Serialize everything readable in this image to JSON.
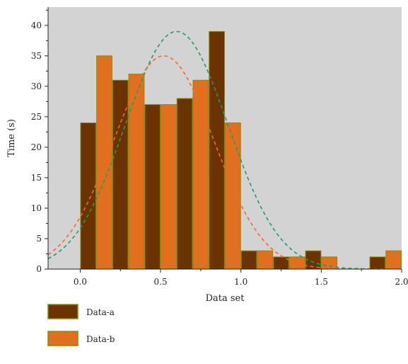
{
  "chart_data": {
    "type": "bar",
    "xlabel": "Data set",
    "ylabel": "Time (s)",
    "xlim": [
      -0.2,
      2.0
    ],
    "ylim": [
      0,
      43
    ],
    "x_ticks": [
      0.0,
      0.5,
      1.0,
      1.5,
      2.0
    ],
    "x_tick_labels": [
      "0.0",
      "0.5",
      "1.0",
      "1.5",
      "2.0"
    ],
    "y_ticks": [
      0,
      5,
      10,
      15,
      20,
      25,
      30,
      35,
      40
    ],
    "y_tick_labels": [
      "0",
      "5",
      "10",
      "15",
      "20",
      "25",
      "30",
      "35",
      "40"
    ],
    "bin_width": 0.1,
    "plot_background": "#d3d3d3",
    "grid": false,
    "legend_position": "bottom-left, below plot",
    "series": [
      {
        "name": "Data-a",
        "color": "#6b3300",
        "edge_color": "#8a8a00",
        "bars": [
          {
            "x": 0.0,
            "value": 24
          },
          {
            "x": 0.2,
            "value": 31
          },
          {
            "x": 0.4,
            "value": 27
          },
          {
            "x": 0.6,
            "value": 28
          },
          {
            "x": 0.8,
            "value": 39
          },
          {
            "x": 1.0,
            "value": 3
          },
          {
            "x": 1.2,
            "value": 2
          },
          {
            "x": 1.4,
            "value": 3
          },
          {
            "x": 1.8,
            "value": 2
          }
        ],
        "fit_curve": {
          "type": "normal",
          "peak": 39,
          "mean": 0.6,
          "sd": 0.32,
          "color": "#1a9e6a"
        }
      },
      {
        "name": "Data-b",
        "color": "#e07020",
        "edge_color": "#8a8a00",
        "bars": [
          {
            "x": 0.1,
            "value": 35
          },
          {
            "x": 0.3,
            "value": 32
          },
          {
            "x": 0.5,
            "value": 27
          },
          {
            "x": 0.7,
            "value": 31
          },
          {
            "x": 0.9,
            "value": 24
          },
          {
            "x": 1.1,
            "value": 3
          },
          {
            "x": 1.3,
            "value": 2
          },
          {
            "x": 1.5,
            "value": 2
          },
          {
            "x": 1.9,
            "value": 3
          }
        ],
        "fit_curve": {
          "type": "normal",
          "peak": 35,
          "mean": 0.52,
          "sd": 0.31,
          "color": "#f06a2a"
        }
      }
    ]
  }
}
